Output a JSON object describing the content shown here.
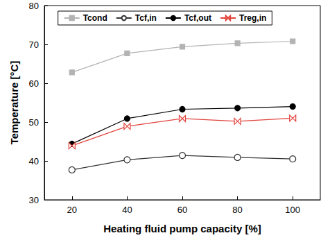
{
  "chart_data": {
    "type": "line",
    "x_label": "Heating fluid pump capacity [%]",
    "y_label": "Temperature [°C]",
    "categories": [
      "20",
      "40",
      "60",
      "80",
      "100"
    ],
    "series": [
      {
        "name": "Tcond",
        "color": "#b3b3b3",
        "marker": "square",
        "values": [
          62.8,
          67.7,
          69.4,
          70.3,
          70.8
        ]
      },
      {
        "name": "Tcf,in",
        "color": "#333333",
        "marker": "open_circle",
        "values": [
          37.7,
          40.3,
          41.4,
          40.9,
          40.5
        ]
      },
      {
        "name": "Tcf,out",
        "color": "#000000",
        "marker": "circle",
        "values": [
          44.4,
          50.9,
          53.3,
          53.6,
          54.0
        ]
      },
      {
        "name": "Treg,in",
        "color": "#e0443c",
        "marker": "bowtie",
        "values": [
          43.9,
          48.9,
          50.9,
          50.2,
          51.0
        ]
      }
    ],
    "ylim": [
      30,
      80
    ],
    "yticks": [
      30,
      40,
      50,
      60,
      70,
      80
    ],
    "grid": false,
    "legend": "top"
  }
}
